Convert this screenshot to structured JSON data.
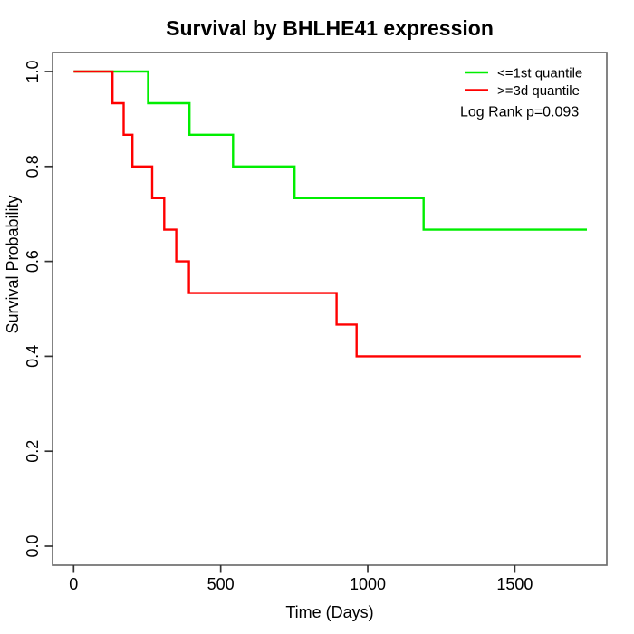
{
  "chart_data": {
    "type": "line",
    "subtype": "kaplan-meier-step",
    "title": "Survival by BHLHE41 expression",
    "xlabel": "Time (Days)",
    "ylabel": "Survival Probability",
    "annotation": "Log Rank p=0.093",
    "grid": false,
    "legend_position": "top-right",
    "xlim": [
      -70,
      1810
    ],
    "ylim": [
      -0.04,
      1.04
    ],
    "xticks": [
      {
        "value": 0,
        "label": "0"
      },
      {
        "value": 500,
        "label": "500"
      },
      {
        "value": 1000,
        "label": "1000"
      },
      {
        "value": 1500,
        "label": "1500"
      }
    ],
    "yticks": [
      {
        "value": 0.0,
        "label": "0.0"
      },
      {
        "value": 0.2,
        "label": "0.2"
      },
      {
        "value": 0.4,
        "label": "0.4"
      },
      {
        "value": 0.6,
        "label": "0.6"
      },
      {
        "value": 0.8,
        "label": "0.8"
      },
      {
        "value": 1.0,
        "label": "1.0"
      }
    ],
    "series": [
      {
        "name": "<=1st quantile",
        "color": "#00ee00",
        "start": [
          0,
          1.0
        ],
        "steps": [
          [
            253,
            0.9333
          ],
          [
            394,
            0.8667
          ],
          [
            542,
            0.8
          ],
          [
            751,
            0.7333
          ],
          [
            1190,
            0.6667
          ]
        ],
        "end_time": 1745
      },
      {
        "name": ">=3d quantile",
        "color": "#ff0000",
        "start": [
          0,
          1.0
        ],
        "steps": [
          [
            132,
            0.9333
          ],
          [
            170,
            0.8667
          ],
          [
            200,
            0.8
          ],
          [
            267,
            0.7333
          ],
          [
            308,
            0.6667
          ],
          [
            349,
            0.6
          ],
          [
            392,
            0.5333
          ],
          [
            894,
            0.4667
          ],
          [
            962,
            0.4
          ]
        ],
        "end_time": 1723
      }
    ]
  }
}
